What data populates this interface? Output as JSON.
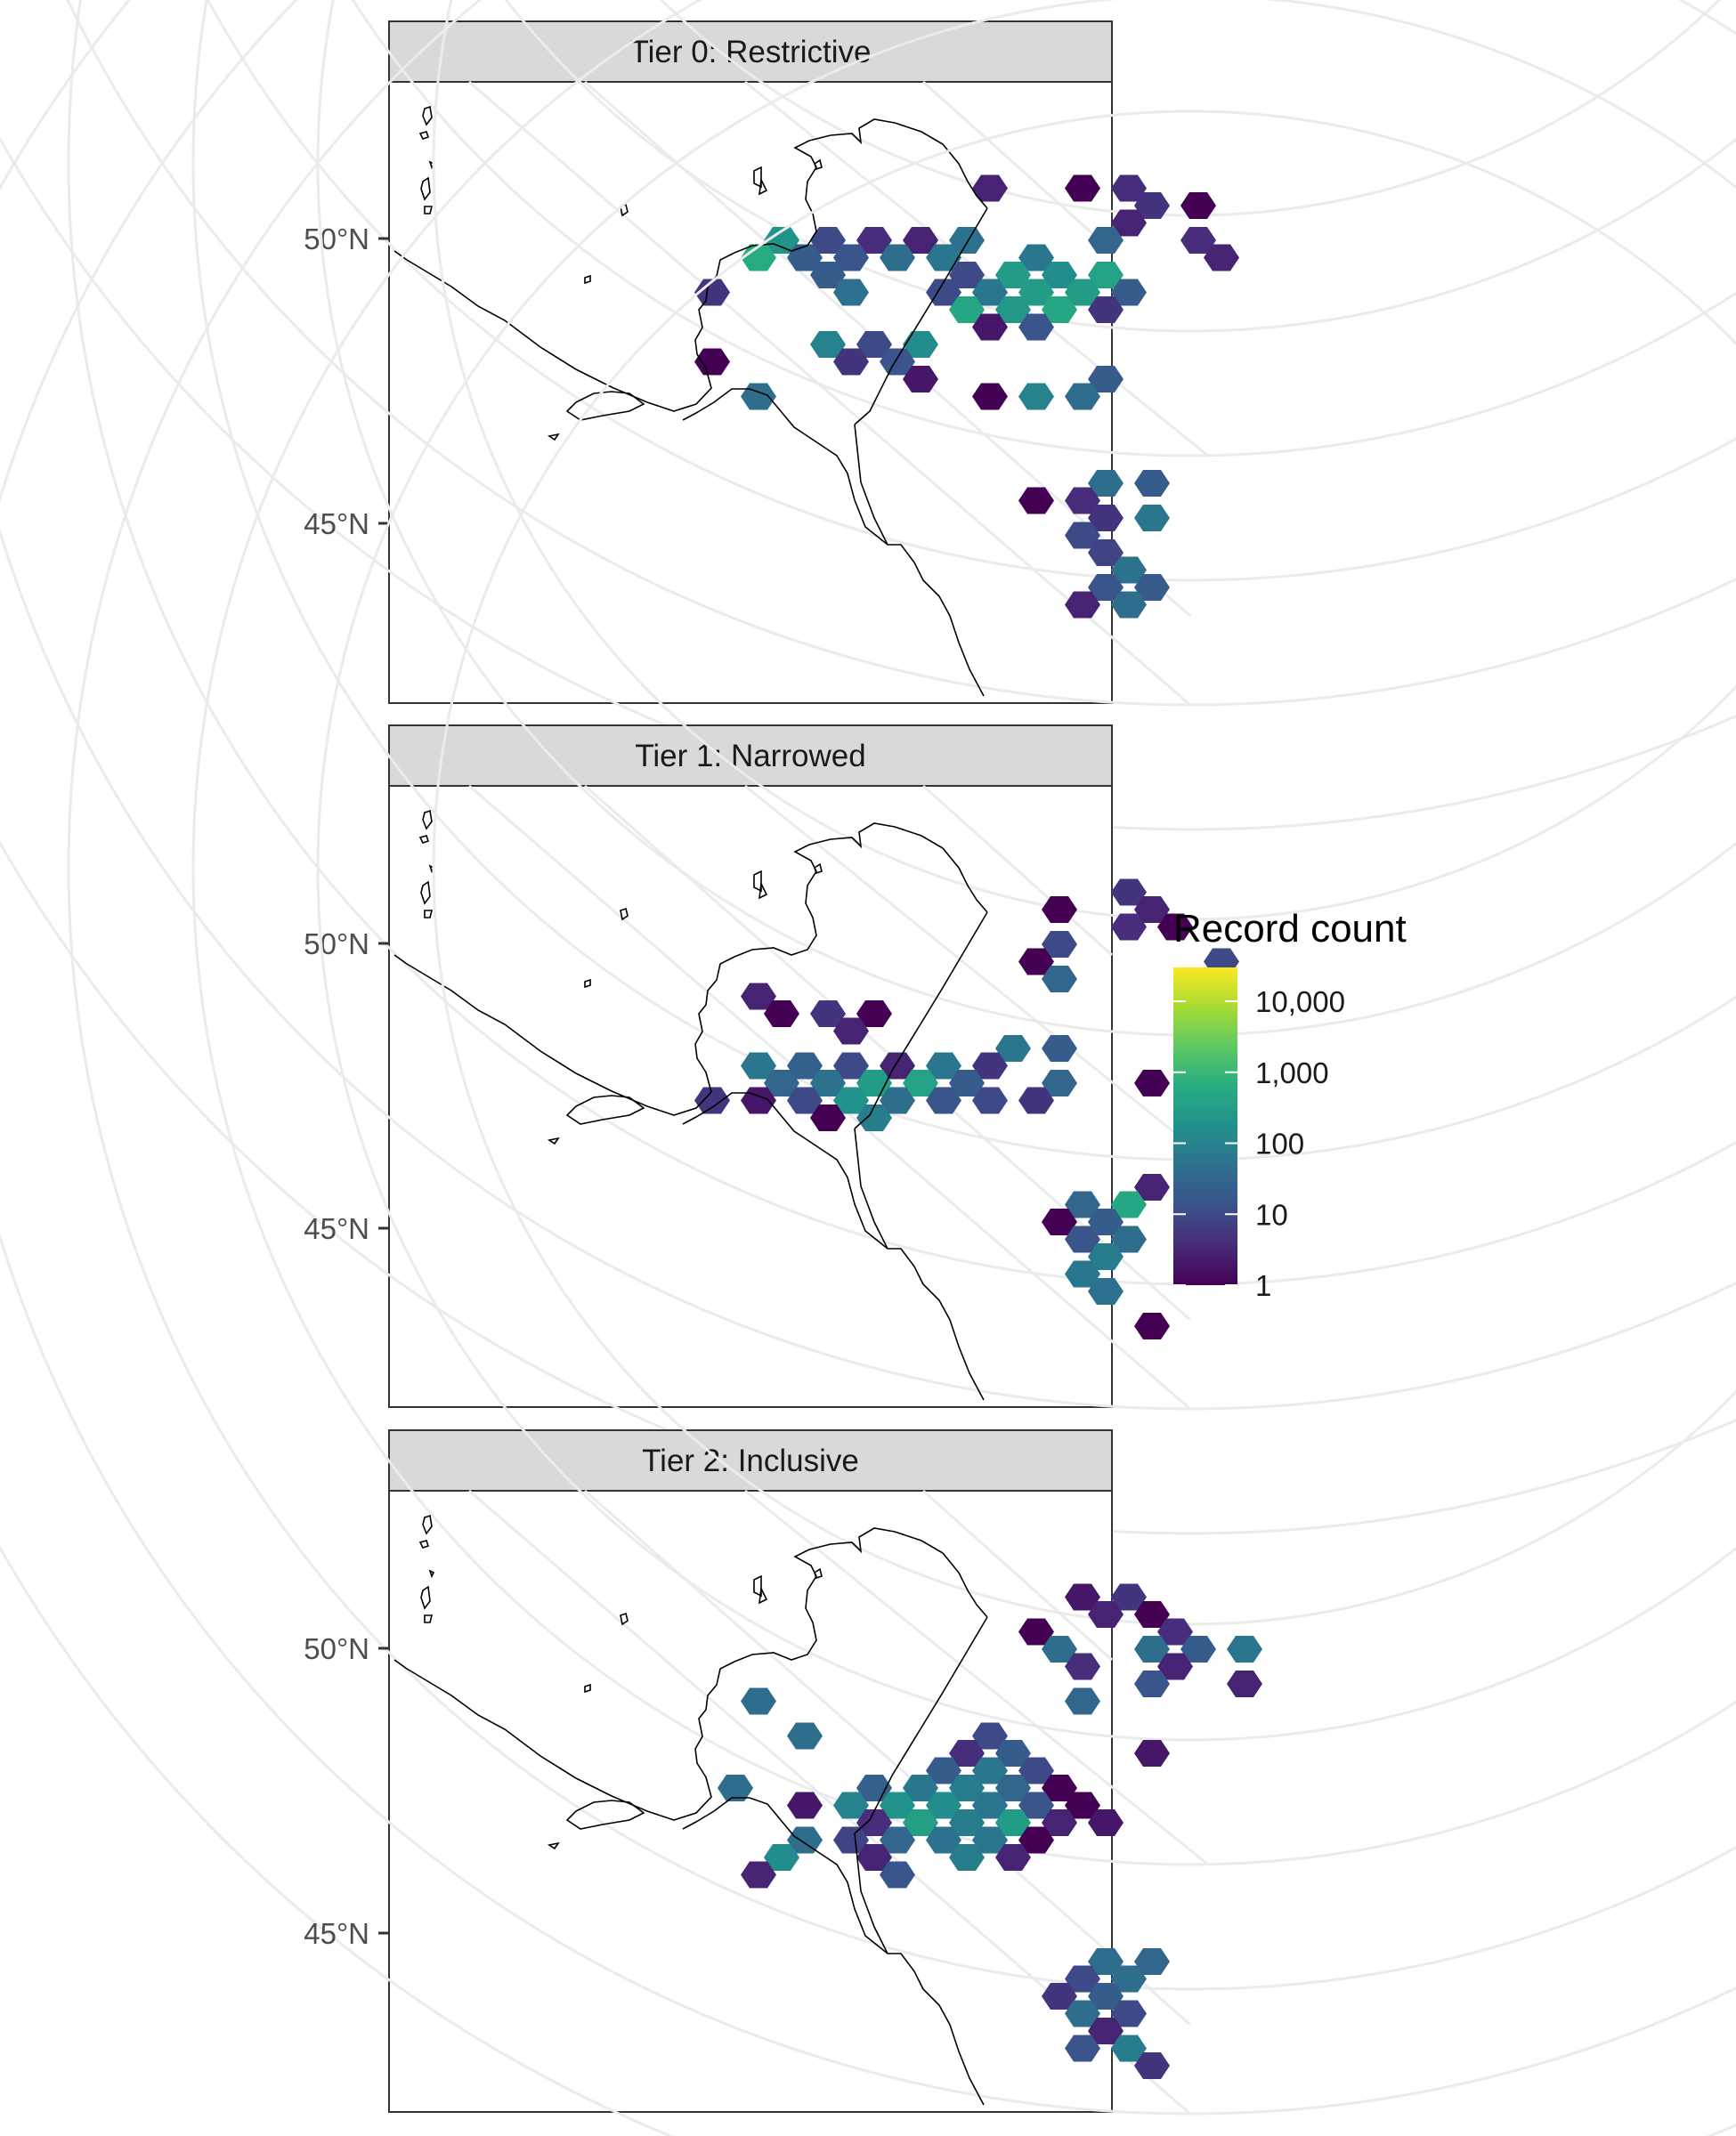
{
  "chart_data": [
    {
      "type": "hexbin",
      "panel": "Tier 0: Restrictive",
      "y_ticks": [
        "50°N",
        "45°N"
      ],
      "cells": [
        {
          "c": 6,
          "r": 1,
          "v": 3
        },
        {
          "c": 8,
          "r": 1,
          "v": 1
        },
        {
          "c": 9,
          "r": 1,
          "v": 4
        },
        {
          "c": 9,
          "r": 2,
          "v": 5
        },
        {
          "c": 10,
          "r": 2,
          "v": 1
        },
        {
          "c": 9,
          "r": 3,
          "v": 3
        },
        {
          "c": 1,
          "r": 4,
          "v": 200
        },
        {
          "c": 2,
          "r": 4,
          "v": 10
        },
        {
          "c": 3,
          "r": 4,
          "v": 4
        },
        {
          "c": 4,
          "r": 4,
          "v": 3
        },
        {
          "c": 5,
          "r": 4,
          "v": 50
        },
        {
          "c": 8,
          "r": 4,
          "v": 30
        },
        {
          "c": 10,
          "r": 4,
          "v": 4
        },
        {
          "c": 1,
          "r": 5,
          "v": 600
        },
        {
          "c": 2,
          "r": 5,
          "v": 20
        },
        {
          "c": 3,
          "r": 5,
          "v": 15
        },
        {
          "c": 4,
          "r": 5,
          "v": 40
        },
        {
          "c": 5,
          "r": 5,
          "v": 60
        },
        {
          "c": 7,
          "r": 5,
          "v": 60
        },
        {
          "c": 11,
          "r": 5,
          "v": 3
        },
        {
          "c": 2,
          "r": 6,
          "v": 20
        },
        {
          "c": 5,
          "r": 6,
          "v": 10
        },
        {
          "c": 6,
          "r": 6,
          "v": 300
        },
        {
          "c": 7,
          "r": 6,
          "v": 150
        },
        {
          "c": 8,
          "r": 6,
          "v": 400
        },
        {
          "c": 0,
          "r": 7,
          "v": 5
        },
        {
          "c": 3,
          "r": 7,
          "v": 50
        },
        {
          "c": 5,
          "r": 7,
          "v": 10
        },
        {
          "c": 6,
          "r": 7,
          "v": 60
        },
        {
          "c": 7,
          "r": 7,
          "v": 300
        },
        {
          "c": 8,
          "r": 7,
          "v": 300
        },
        {
          "c": 9,
          "r": 7,
          "v": 20
        },
        {
          "c": 5,
          "r": 8,
          "v": 500
        },
        {
          "c": 6,
          "r": 8,
          "v": 250
        },
        {
          "c": 7,
          "r": 8,
          "v": 500
        },
        {
          "c": 8,
          "r": 8,
          "v": 5
        },
        {
          "c": 6,
          "r": 9,
          "v": 2
        },
        {
          "c": 7,
          "r": 9,
          "v": 15
        },
        {
          "c": 2,
          "r": 10,
          "v": 100
        },
        {
          "c": 3,
          "r": 10,
          "v": 10
        },
        {
          "c": 4,
          "r": 10,
          "v": 150
        },
        {
          "c": 0,
          "r": 11,
          "v": 1
        },
        {
          "c": 3,
          "r": 11,
          "v": 5
        },
        {
          "c": 4,
          "r": 11,
          "v": 15
        },
        {
          "c": 4,
          "r": 12,
          "v": 2
        },
        {
          "c": 8,
          "r": 12,
          "v": 20
        },
        {
          "c": 1,
          "r": 13,
          "v": 40
        },
        {
          "c": 6,
          "r": 13,
          "v": 1
        },
        {
          "c": 7,
          "r": 13,
          "v": 100
        },
        {
          "c": 8,
          "r": 13,
          "v": 40
        },
        {
          "c": 8,
          "r": 18,
          "v": 40
        },
        {
          "c": 9,
          "r": 18,
          "v": 20
        },
        {
          "c": 7,
          "r": 19,
          "v": 1
        },
        {
          "c": 8,
          "r": 19,
          "v": 4
        },
        {
          "c": 8,
          "r": 20,
          "v": 5
        },
        {
          "c": 9,
          "r": 20,
          "v": 60
        },
        {
          "c": 8,
          "r": 21,
          "v": 10
        },
        {
          "c": 8,
          "r": 22,
          "v": 8
        },
        {
          "c": 9,
          "r": 23,
          "v": 50
        },
        {
          "c": 8,
          "r": 24,
          "v": 15
        },
        {
          "c": 9,
          "r": 24,
          "v": 20
        },
        {
          "c": 8,
          "r": 25,
          "v": 3
        },
        {
          "c": 9,
          "r": 25,
          "v": 40
        }
      ]
    },
    {
      "type": "hexbin",
      "panel": "Tier 1: Narrowed",
      "y_ticks": [
        "50°N",
        "45°N"
      ],
      "cells": [
        {
          "c": 9,
          "r": 1,
          "v": 5
        },
        {
          "c": 7,
          "r": 2,
          "v": 1
        },
        {
          "c": 9,
          "r": 2,
          "v": 3
        },
        {
          "c": 9,
          "r": 3,
          "v": 4
        },
        {
          "c": 10,
          "r": 3,
          "v": 1
        },
        {
          "c": 7,
          "r": 4,
          "v": 10
        },
        {
          "c": 7,
          "r": 5,
          "v": 1
        },
        {
          "c": 11,
          "r": 5,
          "v": 10
        },
        {
          "c": 7,
          "r": 6,
          "v": 30
        },
        {
          "c": 1,
          "r": 7,
          "v": 3
        },
        {
          "c": 1,
          "r": 8,
          "v": 1
        },
        {
          "c": 2,
          "r": 8,
          "v": 5
        },
        {
          "c": 3,
          "r": 8,
          "v": 1
        },
        {
          "c": 3,
          "r": 9,
          "v": 3
        },
        {
          "c": 6,
          "r": 10,
          "v": 60
        },
        {
          "c": 7,
          "r": 10,
          "v": 20
        },
        {
          "c": 1,
          "r": 11,
          "v": 60
        },
        {
          "c": 2,
          "r": 11,
          "v": 25
        },
        {
          "c": 3,
          "r": 11,
          "v": 10
        },
        {
          "c": 4,
          "r": 11,
          "v": 3
        },
        {
          "c": 5,
          "r": 11,
          "v": 60
        },
        {
          "c": 6,
          "r": 11,
          "v": 5
        },
        {
          "c": 1,
          "r": 12,
          "v": 30
        },
        {
          "c": 2,
          "r": 12,
          "v": 50
        },
        {
          "c": 3,
          "r": 12,
          "v": 300
        },
        {
          "c": 4,
          "r": 12,
          "v": 400
        },
        {
          "c": 5,
          "r": 12,
          "v": 20
        },
        {
          "c": 7,
          "r": 12,
          "v": 30
        },
        {
          "c": 9,
          "r": 12,
          "v": 1
        },
        {
          "c": 0,
          "r": 13,
          "v": 5
        },
        {
          "c": 1,
          "r": 13,
          "v": 2
        },
        {
          "c": 2,
          "r": 13,
          "v": 10
        },
        {
          "c": 3,
          "r": 13,
          "v": 200
        },
        {
          "c": 4,
          "r": 13,
          "v": 40
        },
        {
          "c": 5,
          "r": 13,
          "v": 15
        },
        {
          "c": 6,
          "r": 13,
          "v": 10
        },
        {
          "c": 7,
          "r": 13,
          "v": 5
        },
        {
          "c": 2,
          "r": 14,
          "v": 1
        },
        {
          "c": 3,
          "r": 14,
          "v": 80
        },
        {
          "c": 9,
          "r": 18,
          "v": 3
        },
        {
          "c": 8,
          "r": 19,
          "v": 30
        },
        {
          "c": 9,
          "r": 19,
          "v": 500
        },
        {
          "c": 7,
          "r": 20,
          "v": 1
        },
        {
          "c": 8,
          "r": 20,
          "v": 20
        },
        {
          "c": 8,
          "r": 21,
          "v": 15
        },
        {
          "c": 9,
          "r": 21,
          "v": 40
        },
        {
          "c": 8,
          "r": 22,
          "v": 80
        },
        {
          "c": 8,
          "r": 23,
          "v": 60
        },
        {
          "c": 8,
          "r": 24,
          "v": 50
        },
        {
          "c": 9,
          "r": 26,
          "v": 1
        }
      ]
    },
    {
      "type": "hexbin",
      "panel": "Tier 2: Inclusive",
      "y_ticks": [
        "50°N",
        "45°N"
      ],
      "cells": [
        {
          "c": 8,
          "r": 1,
          "v": 2
        },
        {
          "c": 9,
          "r": 1,
          "v": 5
        },
        {
          "c": 8,
          "r": 2,
          "v": 3
        },
        {
          "c": 9,
          "r": 2,
          "v": 1
        },
        {
          "c": 7,
          "r": 3,
          "v": 1
        },
        {
          "c": 10,
          "r": 3,
          "v": 4
        },
        {
          "c": 7,
          "r": 4,
          "v": 40
        },
        {
          "c": 9,
          "r": 4,
          "v": 40
        },
        {
          "c": 10,
          "r": 4,
          "v": 20
        },
        {
          "c": 11,
          "r": 4,
          "v": 60
        },
        {
          "c": 8,
          "r": 5,
          "v": 4
        },
        {
          "c": 10,
          "r": 5,
          "v": 3
        },
        {
          "c": 9,
          "r": 6,
          "v": 15
        },
        {
          "c": 11,
          "r": 6,
          "v": 3
        },
        {
          "c": 1,
          "r": 7,
          "v": 40
        },
        {
          "c": 8,
          "r": 7,
          "v": 30
        },
        {
          "c": 2,
          "r": 9,
          "v": 40
        },
        {
          "c": 6,
          "r": 9,
          "v": 10
        },
        {
          "c": 5,
          "r": 10,
          "v": 4
        },
        {
          "c": 6,
          "r": 10,
          "v": 20
        },
        {
          "c": 9,
          "r": 10,
          "v": 2
        },
        {
          "c": 5,
          "r": 11,
          "v": 20
        },
        {
          "c": 6,
          "r": 11,
          "v": 60
        },
        {
          "c": 7,
          "r": 11,
          "v": 10
        },
        {
          "c": 0,
          "r": 12,
          "v": 40
        },
        {
          "c": 3,
          "r": 12,
          "v": 25
        },
        {
          "c": 4,
          "r": 12,
          "v": 60
        },
        {
          "c": 5,
          "r": 12,
          "v": 80
        },
        {
          "c": 6,
          "r": 12,
          "v": 30
        },
        {
          "c": 7,
          "r": 12,
          "v": 1
        },
        {
          "c": 2,
          "r": 13,
          "v": 2
        },
        {
          "c": 3,
          "r": 13,
          "v": 100
        },
        {
          "c": 4,
          "r": 13,
          "v": 200
        },
        {
          "c": 5,
          "r": 13,
          "v": 150
        },
        {
          "c": 6,
          "r": 13,
          "v": 60
        },
        {
          "c": 7,
          "r": 13,
          "v": 15
        },
        {
          "c": 8,
          "r": 13,
          "v": 1
        },
        {
          "c": 3,
          "r": 14,
          "v": 4
        },
        {
          "c": 4,
          "r": 14,
          "v": 350
        },
        {
          "c": 5,
          "r": 14,
          "v": 80
        },
        {
          "c": 6,
          "r": 14,
          "v": 300
        },
        {
          "c": 7,
          "r": 14,
          "v": 3
        },
        {
          "c": 8,
          "r": 14,
          "v": 2
        },
        {
          "c": 2,
          "r": 15,
          "v": 40
        },
        {
          "c": 3,
          "r": 15,
          "v": 8
        },
        {
          "c": 4,
          "r": 15,
          "v": 30
        },
        {
          "c": 5,
          "r": 15,
          "v": 50
        },
        {
          "c": 6,
          "r": 15,
          "v": 60
        },
        {
          "c": 7,
          "r": 15,
          "v": 1
        },
        {
          "c": 1,
          "r": 16,
          "v": 150
        },
        {
          "c": 3,
          "r": 16,
          "v": 3
        },
        {
          "c": 5,
          "r": 16,
          "v": 80
        },
        {
          "c": 6,
          "r": 16,
          "v": 3
        },
        {
          "c": 1,
          "r": 17,
          "v": 3
        },
        {
          "c": 4,
          "r": 17,
          "v": 15
        },
        {
          "c": 0,
          "r": 12,
          "v": 40
        },
        {
          "c": 8,
          "r": 22,
          "v": 40
        },
        {
          "c": 9,
          "r": 22,
          "v": 30
        },
        {
          "c": 8,
          "r": 23,
          "v": 10
        },
        {
          "c": 9,
          "r": 23,
          "v": 40
        },
        {
          "c": 7,
          "r": 24,
          "v": 5
        },
        {
          "c": 8,
          "r": 24,
          "v": 20
        },
        {
          "c": 8,
          "r": 25,
          "v": 40
        },
        {
          "c": 9,
          "r": 25,
          "v": 10
        },
        {
          "c": 8,
          "r": 26,
          "v": 3
        },
        {
          "c": 8,
          "r": 27,
          "v": 15
        },
        {
          "c": 9,
          "r": 27,
          "v": 80
        },
        {
          "c": 9,
          "r": 28,
          "v": 5
        }
      ]
    }
  ],
  "legend": {
    "title": "Record count",
    "ticks": [
      "10,000",
      "1,000",
      "100",
      "10",
      "1"
    ],
    "tick_values": [
      10000,
      1000,
      100,
      10,
      1
    ],
    "range": [
      1,
      30000
    ],
    "colorscale": [
      "#440154",
      "#3b528b",
      "#21908c",
      "#5dc963",
      "#fde725"
    ]
  }
}
